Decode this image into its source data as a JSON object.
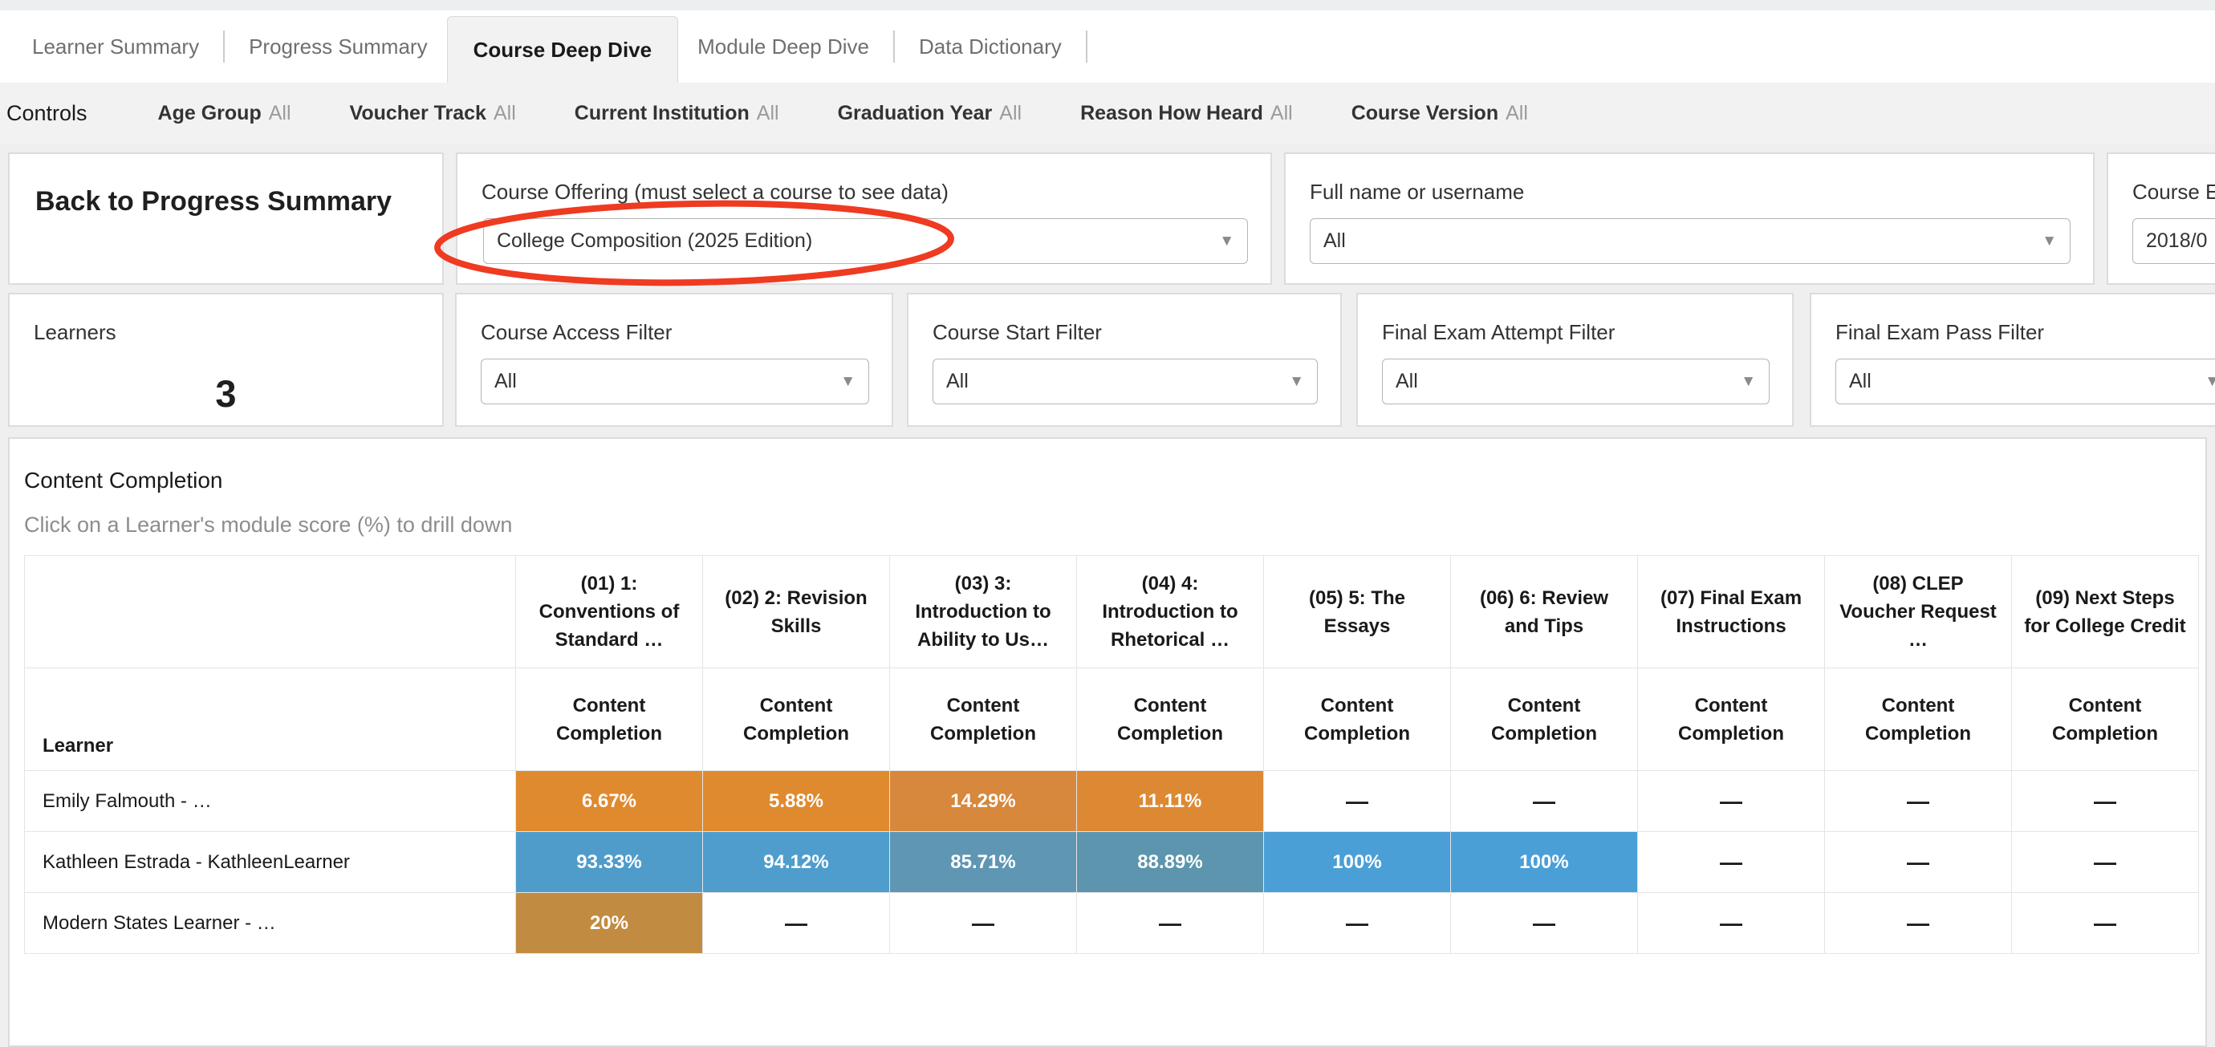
{
  "tabs": [
    {
      "label": "Learner Summary",
      "active": false,
      "divider_after": true
    },
    {
      "label": "Progress Summary",
      "active": false,
      "divider_after": false
    },
    {
      "label": "Course Deep Dive",
      "active": true,
      "divider_after": false
    },
    {
      "label": "Module Deep Dive",
      "active": false,
      "divider_after": true
    },
    {
      "label": "Data Dictionary",
      "active": false,
      "divider_after": true
    }
  ],
  "controls": {
    "title": "Controls",
    "filters": [
      {
        "label": "Age Group",
        "value": "All"
      },
      {
        "label": "Voucher Track",
        "value": "All"
      },
      {
        "label": "Current Institution",
        "value": "All"
      },
      {
        "label": "Graduation Year",
        "value": "All"
      },
      {
        "label": "Reason How Heard",
        "value": "All"
      },
      {
        "label": "Course Version",
        "value": "All"
      }
    ]
  },
  "cards": {
    "back_button": {
      "label": "Back to Progress Summary"
    },
    "course_offering": {
      "label": "Course Offering (must select a course to see data)",
      "value": "College Composition (2025 Edition)"
    },
    "full_name": {
      "label": "Full name or username",
      "value": "All"
    },
    "course_clipped": {
      "label": "Course E",
      "value": "2018/0"
    },
    "learners": {
      "label": "Learners",
      "value": "3"
    },
    "course_access": {
      "label": "Course Access Filter",
      "value": "All"
    },
    "course_start": {
      "label": "Course Start Filter",
      "value": "All"
    },
    "final_exam_attempt": {
      "label": "Final Exam Attempt Filter",
      "value": "All"
    },
    "final_exam_pass": {
      "label": "Final Exam Pass Filter",
      "value": "All"
    }
  },
  "annotation": {
    "shape": "ellipse",
    "color": "#ee3b21"
  },
  "content_completion": {
    "title": "Content Completion",
    "subtitle": "Click on a Learner's module score (%) to drill down",
    "row_header": "Learner",
    "sub_header": "Content Completion",
    "columns": [
      "(01) 1: Conventions of Standard …",
      "(02) 2: Revision Skills",
      "(03) 3: Introduction to Ability to Us…",
      "(04) 4: Introduction to Rhetorical …",
      "(05) 5: The Essays",
      "(06) 6: Review and Tips",
      "(07) Final Exam Instructions",
      "(08) CLEP Voucher Request …",
      "(09) Next Steps for College Credit"
    ],
    "rows": [
      {
        "learner": "Emily Falmouth - …",
        "cells": [
          {
            "value": "6.67%",
            "color": "#e08a2f"
          },
          {
            "value": "5.88%",
            "color": "#e08a2f"
          },
          {
            "value": "14.29%",
            "color": "#d7883c"
          },
          {
            "value": "11.11%",
            "color": "#dd8933"
          },
          {
            "value": "—",
            "color": null
          },
          {
            "value": "—",
            "color": null
          },
          {
            "value": "—",
            "color": null
          },
          {
            "value": "—",
            "color": null
          },
          {
            "value": "—",
            "color": null
          }
        ]
      },
      {
        "learner": "Kathleen Estrada - KathleenLearner",
        "cells": [
          {
            "value": "93.33%",
            "color": "#4f9ccb"
          },
          {
            "value": "94.12%",
            "color": "#4e9dcd"
          },
          {
            "value": "85.71%",
            "color": "#5f96b3"
          },
          {
            "value": "88.89%",
            "color": "#5c95ad"
          },
          {
            "value": "100%",
            "color": "#4b9fd7"
          },
          {
            "value": "100%",
            "color": "#4b9fd7"
          },
          {
            "value": "—",
            "color": null
          },
          {
            "value": "—",
            "color": null
          },
          {
            "value": "—",
            "color": null
          }
        ]
      },
      {
        "learner": "Modern States Learner - …",
        "cells": [
          {
            "value": "20%",
            "color": "#c28b42"
          },
          {
            "value": "—",
            "color": null
          },
          {
            "value": "—",
            "color": null
          },
          {
            "value": "—",
            "color": null
          },
          {
            "value": "—",
            "color": null
          },
          {
            "value": "—",
            "color": null
          },
          {
            "value": "—",
            "color": null
          },
          {
            "value": "—",
            "color": null
          },
          {
            "value": "—",
            "color": null
          }
        ]
      }
    ]
  }
}
